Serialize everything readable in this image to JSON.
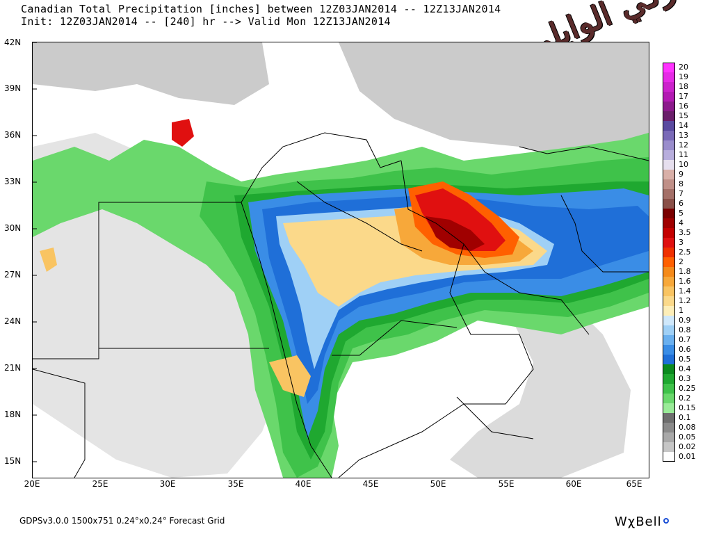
{
  "header": {
    "line1": "Canadian Total Precipitation [inches] between 12Z03JAN2014 -- 12Z13JAN2014",
    "line2": "Init: 12Z03JAN2014 -- [240] hr --> Valid Mon 12Z13JAN2014"
  },
  "watermark": "تركي الوايلي",
  "axes": {
    "y_ticks": [
      "42N",
      "39N",
      "36N",
      "33N",
      "30N",
      "27N",
      "24N",
      "21N",
      "18N",
      "15N"
    ],
    "x_ticks": [
      "20E",
      "25E",
      "30E",
      "35E",
      "40E",
      "45E",
      "50E",
      "55E",
      "60E",
      "65E"
    ]
  },
  "legend": {
    "items": [
      {
        "label": "20",
        "color": "#ff33ff"
      },
      {
        "label": "19",
        "color": "#e62ae6"
      },
      {
        "label": "18",
        "color": "#cc22cc"
      },
      {
        "label": "17",
        "color": "#b31ab3"
      },
      {
        "label": "16",
        "color": "#8c1a8c"
      },
      {
        "label": "15",
        "color": "#6b1f6b"
      },
      {
        "label": "14",
        "color": "#5a4aa0"
      },
      {
        "label": "13",
        "color": "#7a6ab8"
      },
      {
        "label": "12",
        "color": "#9a8dcc"
      },
      {
        "label": "11",
        "color": "#b8aedd"
      },
      {
        "label": "10",
        "color": "#e6dfee"
      },
      {
        "label": "9",
        "color": "#d9b0a8"
      },
      {
        "label": "8",
        "color": "#c09088"
      },
      {
        "label": "7",
        "color": "#a47068"
      },
      {
        "label": "6",
        "color": "#8a5048"
      },
      {
        "label": "5",
        "color": "#7a0000"
      },
      {
        "label": "4",
        "color": "#a00000"
      },
      {
        "label": "3.5",
        "color": "#c40000"
      },
      {
        "label": "3",
        "color": "#e01010"
      },
      {
        "label": "2.5",
        "color": "#f03000"
      },
      {
        "label": "2",
        "color": "#ff6000"
      },
      {
        "label": "1.8",
        "color": "#f58a1a"
      },
      {
        "label": "1.6",
        "color": "#f7a83a"
      },
      {
        "label": "1.4",
        "color": "#f9c462"
      },
      {
        "label": "1.2",
        "color": "#fbd98a"
      },
      {
        "label": "1",
        "color": "#fdeeb8"
      },
      {
        "label": "0.9",
        "color": "#cfe8fb"
      },
      {
        "label": "0.8",
        "color": "#9fd0f6"
      },
      {
        "label": "0.7",
        "color": "#6ab0ef"
      },
      {
        "label": "0.6",
        "color": "#3a8de6"
      },
      {
        "label": "0.5",
        "color": "#1f6fd8"
      },
      {
        "label": "0.4",
        "color": "#0b8a1e"
      },
      {
        "label": "0.3",
        "color": "#1fa830"
      },
      {
        "label": "0.25",
        "color": "#3fc24a"
      },
      {
        "label": "0.2",
        "color": "#6ad86c"
      },
      {
        "label": "0.15",
        "color": "#9aeb98"
      },
      {
        "label": "0.1",
        "color": "#6e6e6e"
      },
      {
        "label": "0.08",
        "color": "#8a8a8a"
      },
      {
        "label": "0.05",
        "color": "#a8a8a8"
      },
      {
        "label": "0.02",
        "color": "#c6c6c6"
      },
      {
        "label": "0.01",
        "color": "#ffffff"
      }
    ]
  },
  "footer": {
    "model_info": "GDPSv3.0.0 1500x751 0.24°x0.24° Forecast Grid",
    "brand": "WχBell"
  }
}
